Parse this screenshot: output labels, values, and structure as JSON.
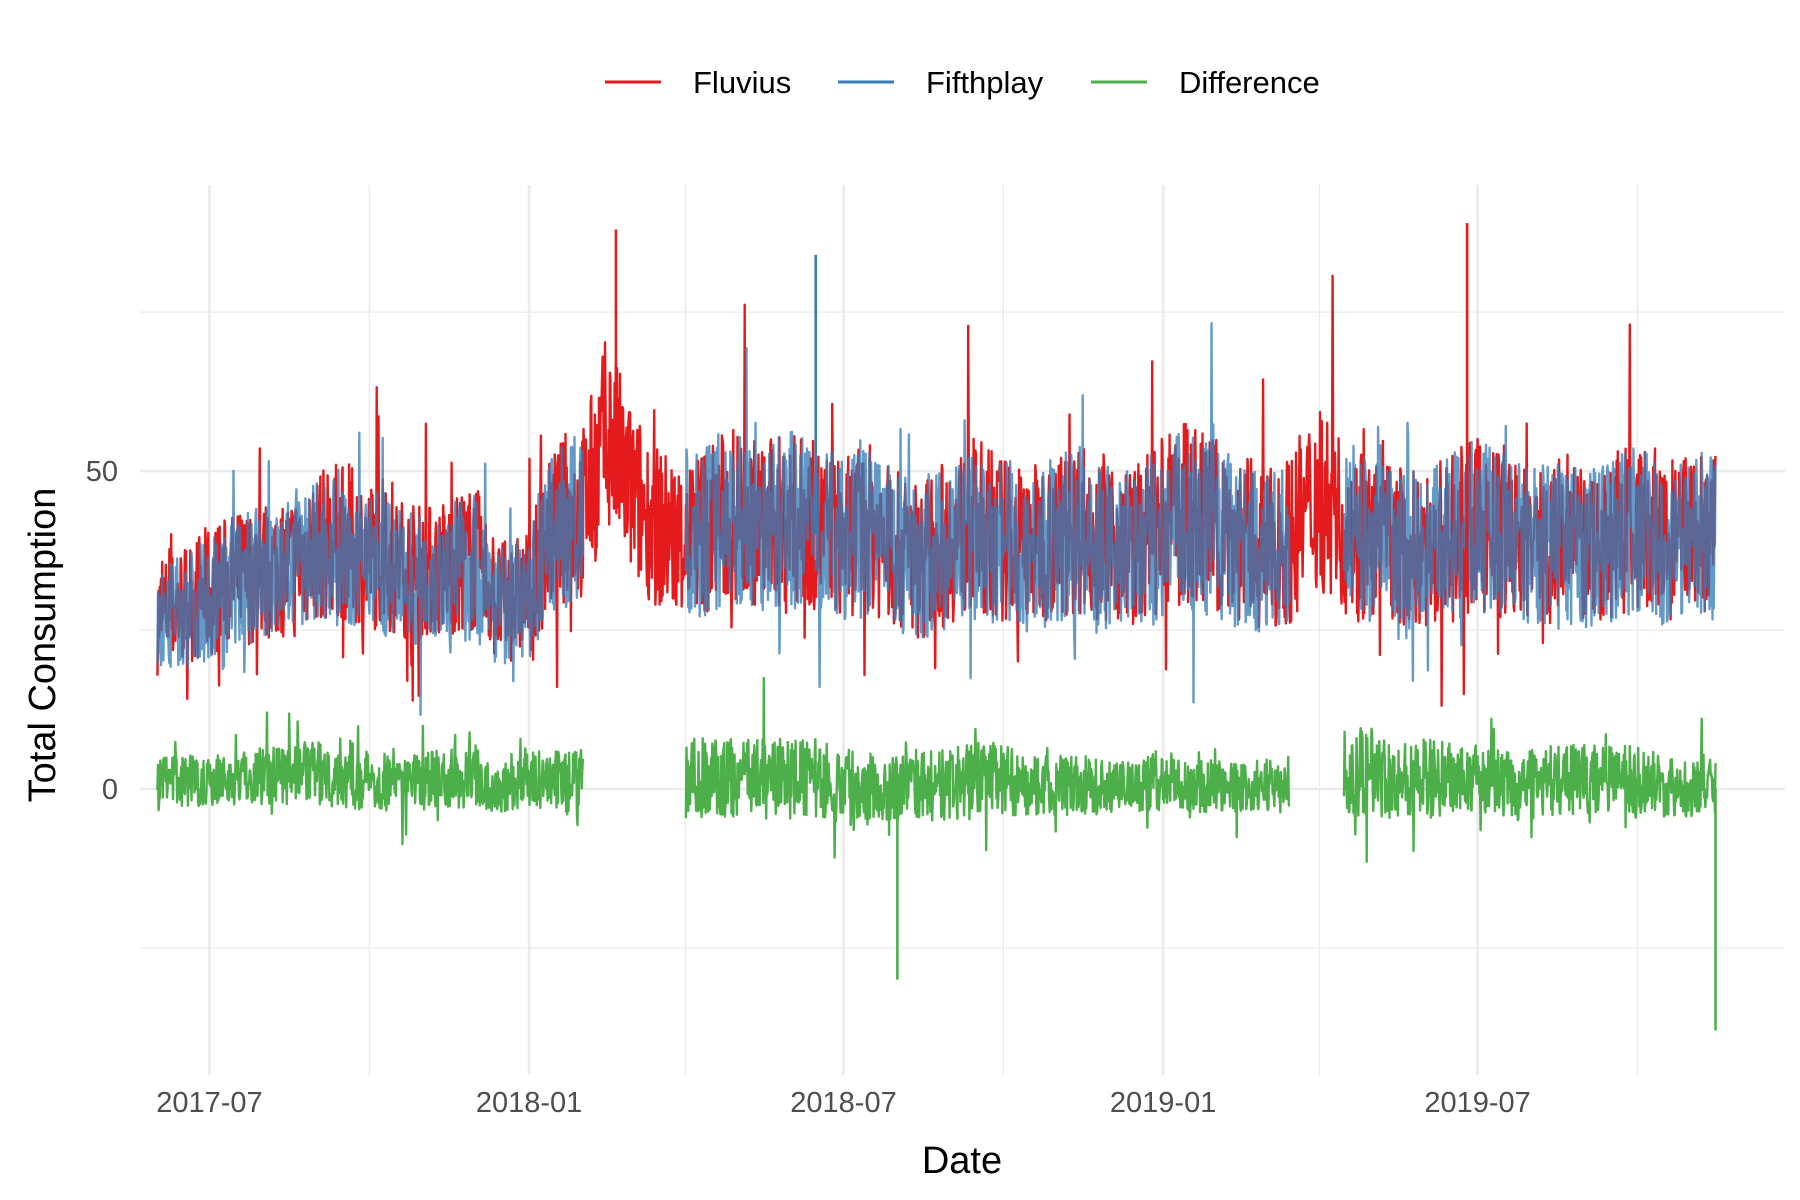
{
  "chart_data": {
    "type": "line",
    "title": "",
    "xlabel": "Date",
    "ylabel": "Total Consumption",
    "x_ticks": [
      "2017-07",
      "2018-01",
      "2018-07",
      "2019-01",
      "2019-07"
    ],
    "y_ticks": [
      0,
      50
    ],
    "xlim": [
      "2017-05-22",
      "2019-12-25"
    ],
    "ylim": [
      -45,
      95
    ],
    "grid": true,
    "legend_position": "top",
    "series_sampling": "one point per half-month; the original shows a dense daily/hourly signal oscillating around these levels",
    "x": [
      "2017-06-01",
      "2017-06-15",
      "2017-07-01",
      "2017-07-15",
      "2017-08-01",
      "2017-08-15",
      "2017-09-01",
      "2017-09-15",
      "2017-10-01",
      "2017-10-15",
      "2017-11-01",
      "2017-11-15",
      "2017-12-01",
      "2017-12-15",
      "2018-01-01",
      "2018-01-15",
      "2018-02-01",
      "2018-02-15",
      "2018-03-01",
      "2018-03-15",
      "2018-04-01",
      "2018-04-15",
      "2018-05-01",
      "2018-05-15",
      "2018-06-01",
      "2018-06-15",
      "2018-07-01",
      "2018-07-15",
      "2018-08-01",
      "2018-08-15",
      "2018-09-01",
      "2018-09-15",
      "2018-10-01",
      "2018-10-15",
      "2018-11-01",
      "2018-11-15",
      "2018-12-01",
      "2018-12-15",
      "2019-01-01",
      "2019-01-15",
      "2019-02-01",
      "2019-02-15",
      "2019-03-01",
      "2019-03-15",
      "2019-04-01",
      "2019-04-15",
      "2019-05-01",
      "2019-05-15",
      "2019-06-01",
      "2019-06-15",
      "2019-07-01",
      "2019-07-15",
      "2019-08-01",
      "2019-08-15",
      "2019-09-01",
      "2019-09-15",
      "2019-10-01",
      "2019-10-15",
      "2019-11-01",
      "2019-11-15"
    ],
    "series": [
      {
        "name": "Fluvius",
        "color": "#e41a1c",
        "values": [
          26,
          28,
          30,
          32,
          33,
          34,
          37,
          38,
          36,
          34,
          33,
          34,
          35,
          28,
          30,
          40,
          42,
          55,
          45,
          40,
          38,
          40,
          42,
          40,
          41,
          40,
          38,
          40,
          36,
          35,
          38,
          40,
          38,
          37,
          39,
          40,
          38,
          37,
          40,
          42,
          40,
          38,
          36,
          38,
          45,
          40,
          38,
          37,
          36,
          38,
          40,
          38,
          37,
          38,
          36,
          38,
          40,
          37,
          39,
          38
        ],
        "spread": [
          13,
          14,
          15,
          15,
          16,
          16,
          17,
          18,
          17,
          16,
          15,
          16,
          17,
          14,
          14,
          18,
          20,
          22,
          20,
          18,
          18,
          20,
          20,
          19,
          20,
          19,
          18,
          19,
          18,
          18,
          19,
          20,
          19,
          18,
          19,
          20,
          19,
          18,
          20,
          21,
          20,
          19,
          18,
          19,
          22,
          20,
          19,
          18,
          18,
          19,
          20,
          19,
          18,
          19,
          18,
          19,
          20,
          18,
          19,
          19
        ]
      },
      {
        "name": "Fifthplay",
        "color": "#377eb8",
        "values": [
          25,
          27,
          29,
          31,
          33,
          34,
          36,
          37,
          36,
          33,
          32,
          33,
          34,
          28,
          29,
          39,
          41,
          null,
          null,
          null,
          38,
          40,
          41,
          40,
          41,
          40,
          38,
          39,
          36,
          35,
          37,
          39,
          38,
          36,
          38,
          39,
          37,
          36,
          39,
          41,
          39,
          37,
          35,
          37,
          null,
          40,
          38,
          37,
          36,
          38,
          40,
          38,
          37,
          38,
          36,
          38,
          40,
          37,
          39,
          38
        ],
        "spread": [
          12,
          13,
          14,
          15,
          15,
          16,
          17,
          18,
          17,
          16,
          15,
          16,
          17,
          14,
          14,
          18,
          20,
          0,
          0,
          0,
          18,
          20,
          20,
          19,
          20,
          19,
          18,
          19,
          18,
          18,
          19,
          20,
          19,
          18,
          19,
          20,
          19,
          18,
          20,
          21,
          20,
          19,
          18,
          19,
          0,
          20,
          19,
          18,
          18,
          19,
          20,
          19,
          18,
          19,
          18,
          19,
          20,
          18,
          19,
          19
        ]
      },
      {
        "name": "Difference",
        "color": "#4daf4a",
        "values": [
          1,
          1,
          1,
          1,
          2,
          2,
          2,
          2,
          1,
          1,
          1,
          1,
          1,
          0,
          1,
          1,
          0,
          null,
          null,
          null,
          1,
          1,
          1,
          1,
          1,
          1,
          0,
          0,
          0,
          0,
          0,
          1,
          1,
          0,
          0,
          0,
          0,
          0,
          1,
          0,
          0,
          0,
          0,
          0,
          null,
          2,
          2,
          1,
          1,
          1,
          1,
          0,
          0,
          1,
          1,
          1,
          1,
          0,
          0,
          0
        ],
        "spread": [
          5,
          6,
          6,
          6,
          7,
          7,
          7,
          8,
          7,
          7,
          6,
          7,
          7,
          6,
          6,
          7,
          8,
          0,
          0,
          0,
          9,
          9,
          9,
          9,
          9,
          9,
          9,
          9,
          8,
          8,
          8,
          9,
          8,
          7,
          7,
          7,
          6,
          6,
          7,
          6,
          6,
          6,
          6,
          6,
          0,
          10,
          10,
          9,
          9,
          8,
          8,
          8,
          8,
          8,
          8,
          8,
          8,
          7,
          7,
          7
        ]
      }
    ],
    "notable_points": [
      {
        "series": "Fluvius",
        "x": "2018-02-20",
        "y": 88
      },
      {
        "series": "Fifthplay",
        "x": "2018-06-15",
        "y": 84
      },
      {
        "series": "Fluvius",
        "x": "2019-06-25",
        "y": 89
      },
      {
        "series": "Difference",
        "x": "2018-08-01",
        "y": -30
      },
      {
        "series": "Difference",
        "x": "2019-11-15",
        "y": -38
      }
    ]
  }
}
